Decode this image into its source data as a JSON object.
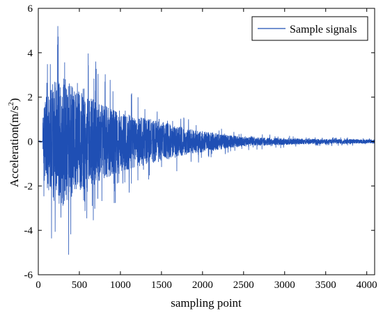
{
  "chart_data": {
    "type": "line",
    "title": "",
    "xlabel": "sampling point",
    "ylabel_main": "Acceleration(m/s",
    "ylabel_sup": "2",
    "ylabel_close": ")",
    "xlim": [
      0,
      4096
    ],
    "ylim": [
      -6,
      6
    ],
    "xticks": [
      0,
      500,
      1000,
      1500,
      2000,
      2500,
      3000,
      3500,
      4000
    ],
    "yticks": [
      -6,
      -4,
      -2,
      0,
      2,
      4,
      6
    ],
    "x_tick_labels": [
      "0",
      "500",
      "1000",
      "1500",
      "2000",
      "2500",
      "3000",
      "3500",
      "4000"
    ],
    "y_tick_labels": [
      "-6",
      "-4",
      "-2",
      "0",
      "2",
      "4",
      "6"
    ],
    "grid": false,
    "legend_position": "top-right",
    "series": [
      {
        "name": "Sample signals",
        "color": "#1f4fb4",
        "description_values": {
          "n_points": 4096,
          "onset_index": 55,
          "peak_max": 5.2,
          "peak_min": -5.1,
          "steady_noise_amplitude": 0.12
        },
        "envelope": {
          "x": [
            0,
            50,
            60,
            100,
            200,
            300,
            400,
            500,
            700,
            900,
            1200,
            1500,
            1800,
            2100,
            2500,
            3000,
            3500,
            4096
          ],
          "amplitude": [
            0.0,
            0.0,
            2.8,
            3.4,
            4.6,
            4.9,
            4.4,
            3.8,
            3.2,
            2.5,
            1.9,
            1.5,
            1.0,
            0.7,
            0.35,
            0.25,
            0.18,
            0.15
          ]
        }
      }
    ]
  }
}
